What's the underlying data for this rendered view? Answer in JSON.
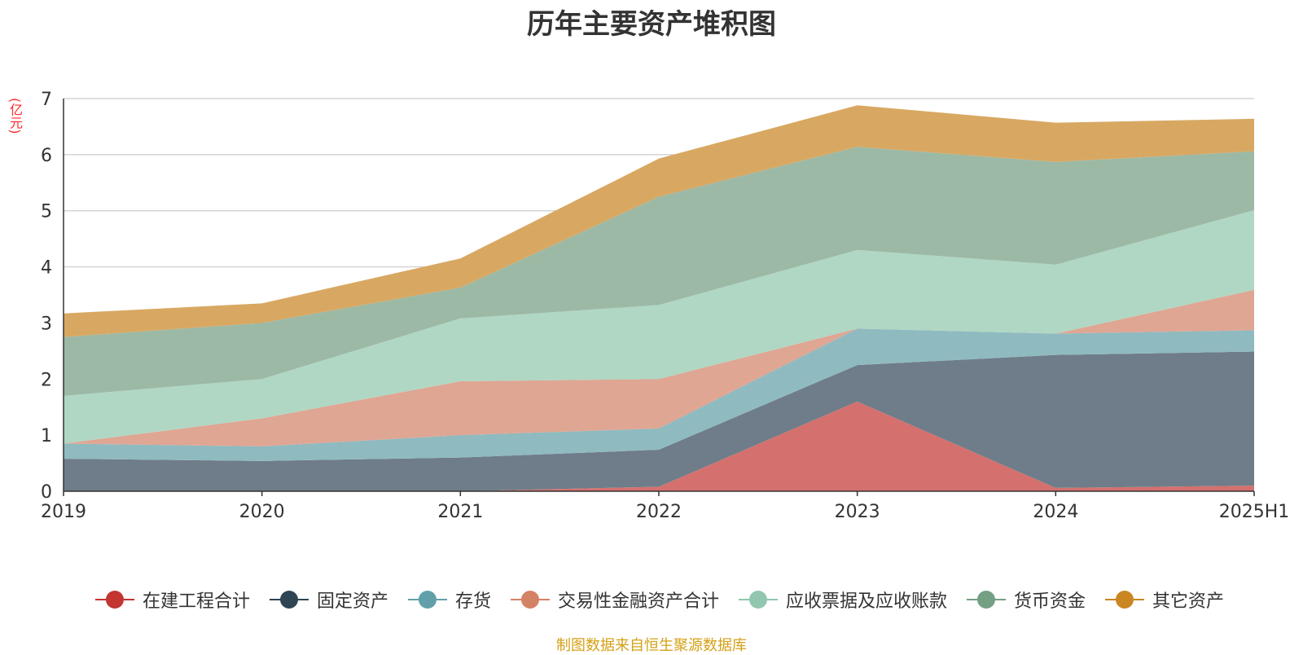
{
  "title": "历年主要资产堆积图",
  "unit_label": "(亿元)",
  "source_note": "制图数据来自恒生聚源数据库",
  "chart_data": {
    "type": "area",
    "stacked": true,
    "title": "历年主要资产堆积图",
    "ylabel": "(亿元)",
    "xlabel": "",
    "categories": [
      "2019",
      "2020",
      "2021",
      "2022",
      "2023",
      "2024",
      "2025H1"
    ],
    "ylim": [
      0,
      7
    ],
    "yticks": [
      0,
      1,
      2,
      3,
      4,
      5,
      6,
      7
    ],
    "grid": true,
    "legend_position": "bottom",
    "series": [
      {
        "name": "在建工程合计",
        "color": "#c23531",
        "fill": "#d4706e",
        "values": [
          0.0,
          0.0,
          0.0,
          0.08,
          1.6,
          0.06,
          0.1
        ]
      },
      {
        "name": "固定资产",
        "color": "#2f4554",
        "fill": "#6e7d89",
        "values": [
          0.58,
          0.54,
          0.6,
          0.66,
          0.65,
          2.37,
          2.39
        ]
      },
      {
        "name": "存货",
        "color": "#61a0a8",
        "fill": "#8fbac0",
        "values": [
          0.27,
          0.26,
          0.4,
          0.38,
          0.65,
          0.38,
          0.38
        ]
      },
      {
        "name": "交易性金融资产合计",
        "color": "#d48265",
        "fill": "#dfa693",
        "values": [
          0.0,
          0.5,
          0.96,
          0.88,
          0.0,
          0.0,
          0.72
        ]
      },
      {
        "name": "应收票据及应收账款",
        "color": "#91c7ae",
        "fill": "#b0d7c3",
        "values": [
          0.85,
          0.7,
          1.12,
          1.32,
          1.4,
          1.23,
          1.42
        ]
      },
      {
        "name": "货币资金",
        "color": "#749f83",
        "fill": "#9cb9a6",
        "values": [
          1.05,
          1.0,
          0.55,
          1.93,
          1.84,
          1.83,
          1.05
        ]
      },
      {
        "name": "其它资产",
        "color": "#ca8622",
        "fill": "#d8a862",
        "values": [
          0.42,
          0.35,
          0.52,
          0.68,
          0.74,
          0.7,
          0.58
        ]
      }
    ]
  }
}
